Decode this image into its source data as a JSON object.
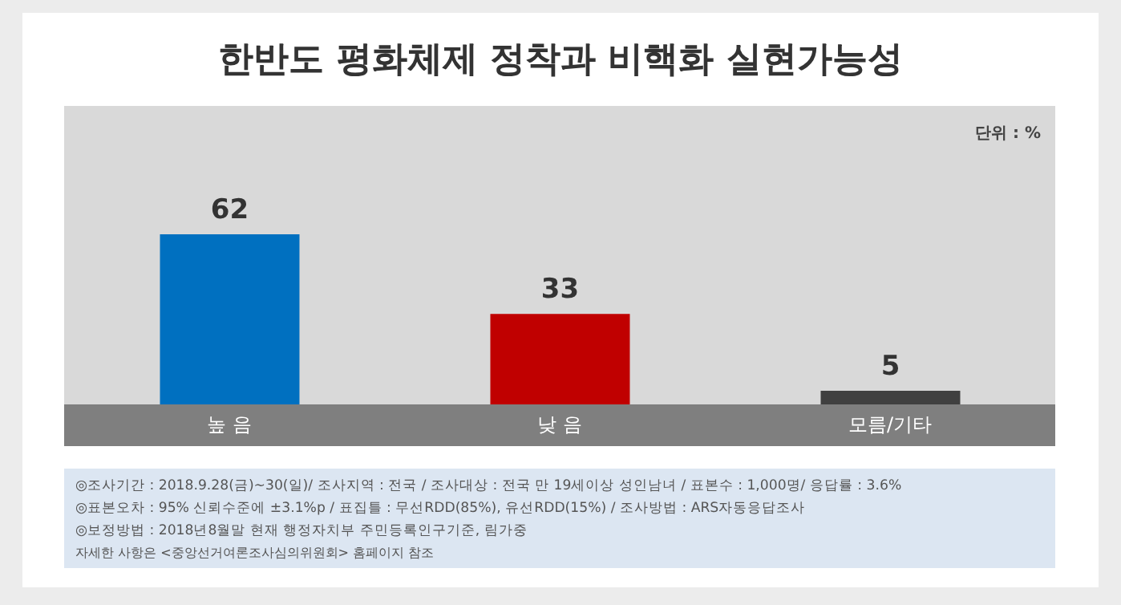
{
  "chart_data": {
    "type": "bar",
    "title": "한반도 평화체제 정착과 비핵화 실현가능성",
    "categories": [
      "높 음",
      "낮 음",
      "모름/기타"
    ],
    "values": [
      62,
      33,
      5
    ],
    "colors": [
      "#0070c0",
      "#c00000",
      "#404040"
    ],
    "data_labels": true,
    "annotations": [
      "단위 : %",
      "◎조사기간 : 2018.9.28(금)~30(일)/ 조사지역 : 전국 / 조사대상 : 전국 만 19세이상 성인남녀 / 표본수 : 1,000명/ 응답률 : 3.6%",
      "◎표본오차 : 95% 신뢰수준에 ±3.1%p / 표집틀 : 무선RDD(85%), 유선RDD(15%) / 조사방법 : ARS자동응답조사",
      "◎보정방법 : 2018년8월말 현재 행정자치부 주민등록인구기준, 림가중",
      "자세한 사항은 <중앙선거여론조사심의위원회> 홈페이지 참조"
    ]
  }
}
